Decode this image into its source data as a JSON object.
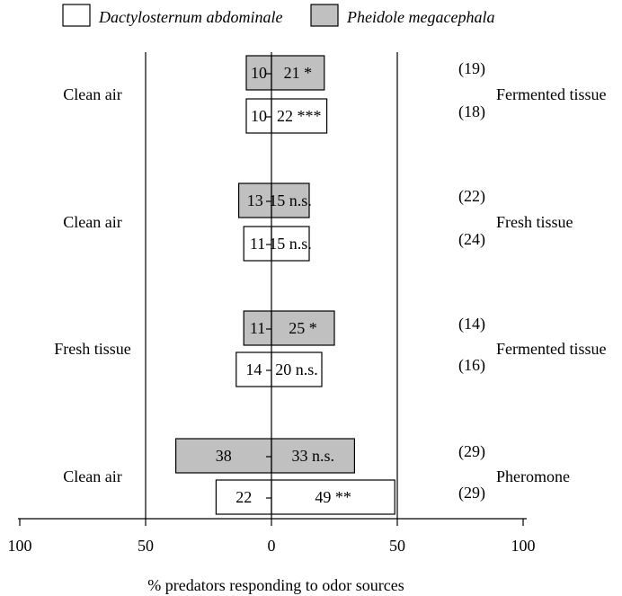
{
  "chart_data": {
    "type": "bar",
    "orientation": "horizontal-diverging",
    "legend": [
      {
        "name": "Dactylosternum abdominale",
        "color": "#ffffff"
      },
      {
        "name": "Pheidole megacephala",
        "color": "#c0c0c0"
      }
    ],
    "x_ticks": [
      "100",
      "50",
      "0",
      "50",
      "100"
    ],
    "xlim": [
      -100,
      100
    ],
    "xlabel": "% predators responding to odor sources",
    "groups": [
      {
        "left_label": "Clean air",
        "right_label": "Fermented tissue",
        "rows": [
          {
            "series": "Pheidole megacephala",
            "left": 10,
            "right": 21,
            "right_text": "21 *",
            "n": "(19)"
          },
          {
            "series": "Dactylosternum abdominale",
            "left": 10,
            "right": 22,
            "right_text": "22 ***",
            "n": "(18)"
          }
        ]
      },
      {
        "left_label": "Clean air",
        "right_label": "Fresh tissue",
        "rows": [
          {
            "series": "Pheidole megacephala",
            "left": 13,
            "right": 15,
            "right_text": "15 n.s.",
            "n": "(22)"
          },
          {
            "series": "Dactylosternum abdominale",
            "left": 11,
            "right": 15,
            "right_text": "15 n.s.",
            "n": "(24)"
          }
        ]
      },
      {
        "left_label": "Fresh tissue",
        "right_label": "Fermented tissue",
        "rows": [
          {
            "series": "Pheidole megacephala",
            "left": 11,
            "right": 25,
            "right_text": "25 *",
            "n": "(14)"
          },
          {
            "series": "Dactylosternum abdominale",
            "left": 14,
            "right": 20,
            "right_text": "20 n.s.",
            "n": "(16)"
          }
        ]
      },
      {
        "left_label": "Clean air",
        "right_label": "Pheromone",
        "rows": [
          {
            "series": "Pheidole megacephala",
            "left": 38,
            "right": 33,
            "right_text": "33 n.s.",
            "n": "(29)"
          },
          {
            "series": "Dactylosternum abdominale",
            "left": 22,
            "right": 49,
            "right_text": "49 **",
            "n": "(29)"
          }
        ]
      }
    ]
  }
}
